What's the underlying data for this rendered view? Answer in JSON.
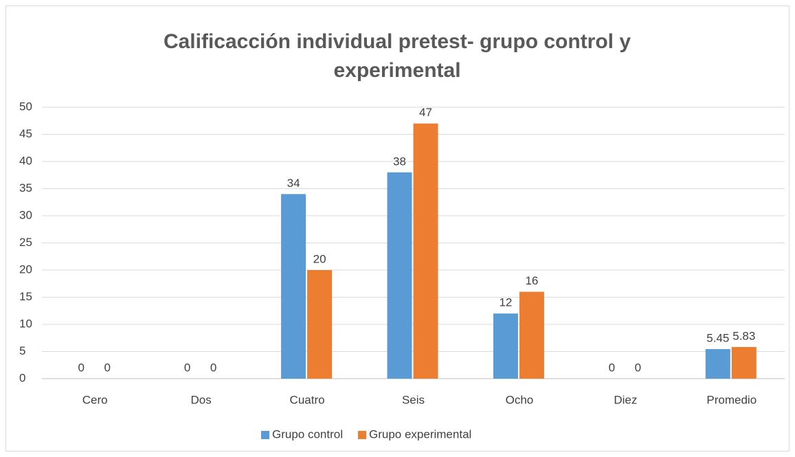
{
  "chart_data": {
    "type": "bar",
    "title": "Calificacción individual pretest- grupo control y experimental",
    "categories": [
      "Cero",
      "Dos",
      "Cuatro",
      "Seis",
      "Ocho",
      "Diez",
      "Promedio"
    ],
    "series": [
      {
        "name": "Grupo control",
        "color": "#5b9bd5",
        "values": [
          0,
          0,
          34,
          38,
          12,
          0,
          5.45
        ]
      },
      {
        "name": "Grupo experimental",
        "color": "#ed7d31",
        "values": [
          0,
          0,
          20,
          47,
          16,
          0,
          5.83
        ]
      }
    ],
    "ylim": [
      0,
      50
    ],
    "yticks": [
      0,
      5,
      10,
      15,
      20,
      25,
      30,
      35,
      40,
      45,
      50
    ],
    "grid": true,
    "legend": "bottom"
  }
}
